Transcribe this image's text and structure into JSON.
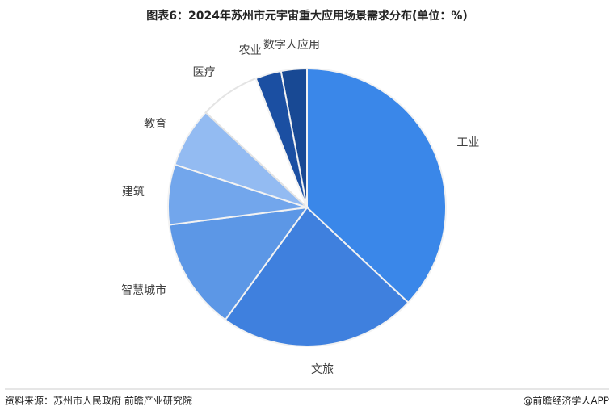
{
  "chart_data": {
    "type": "pie",
    "title": "图表6：2024年苏州市元宇宙重大应用场景需求分布(单位：%)",
    "categories": [
      "工业",
      "文旅",
      "智慧城市",
      "建筑",
      "教育",
      "医疗",
      "农业",
      "数字人应用"
    ],
    "values": [
      37,
      23,
      13,
      7,
      7,
      7,
      3,
      3
    ],
    "colors": [
      "#3a87e9",
      "#3f80de",
      "#5c97e6",
      "#72a6ec",
      "#93bbf2",
      "#ffffff",
      "#1b4fa2",
      "#184994"
    ]
  },
  "footer": {
    "source": "资料来源：苏州市人民政府 前瞻产业研究院",
    "credit": "@前瞻经济学人APP"
  }
}
